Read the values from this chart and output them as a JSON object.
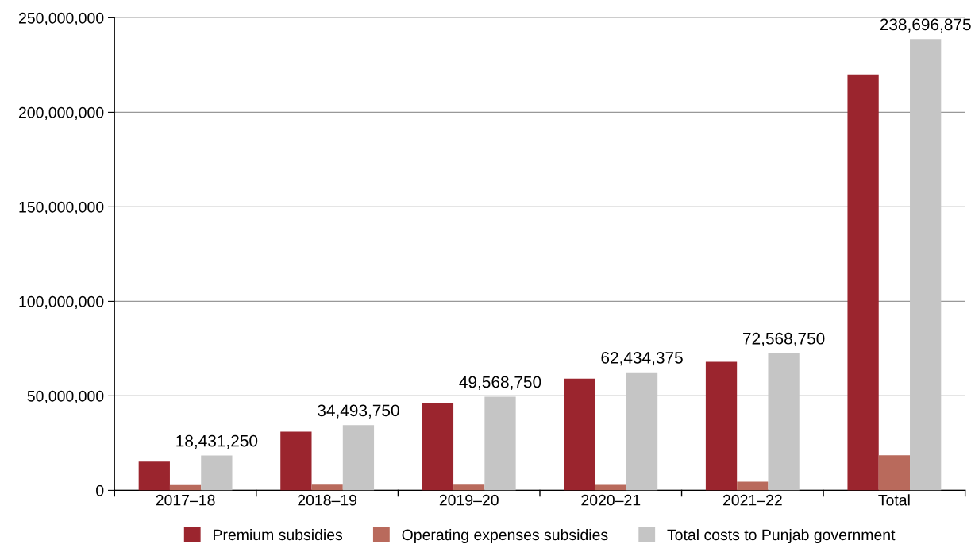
{
  "chart_data": {
    "type": "bar",
    "categories": [
      "2017–18",
      "2018–19",
      "2019–20",
      "2020–21",
      "2021–22",
      "Total"
    ],
    "series": [
      {
        "name": "Premium subsidies",
        "color": "#9b252e",
        "values": [
          15200000,
          31100000,
          46100000,
          59100000,
          68000000,
          220000000
        ]
      },
      {
        "name": "Operating expenses subsidies",
        "color": "#b96a5c",
        "values": [
          3200000,
          3400000,
          3400000,
          3300000,
          4600000,
          18500000
        ]
      },
      {
        "name": "Total costs to Punjab government",
        "color": "#c5c5c5",
        "values": [
          18431250,
          34493750,
          49568750,
          62434375,
          72568750,
          238696875
        ],
        "value_labels": [
          "18,431,250",
          "34,493,750",
          "49,568,750",
          "62,434,375",
          "72,568,750",
          "238,696,875"
        ]
      }
    ],
    "ylim": [
      0,
      250000000
    ],
    "yticks": [
      {
        "value": 0,
        "label": "0"
      },
      {
        "value": 50000000,
        "label": "50,000,000"
      },
      {
        "value": 100000000,
        "label": "100,000,000"
      },
      {
        "value": 150000000,
        "label": "150,000,000"
      },
      {
        "value": 200000000,
        "label": "200,000,000"
      },
      {
        "value": 250000000,
        "label": "250,000,000"
      }
    ],
    "grid": "y",
    "legend": "bottom"
  }
}
